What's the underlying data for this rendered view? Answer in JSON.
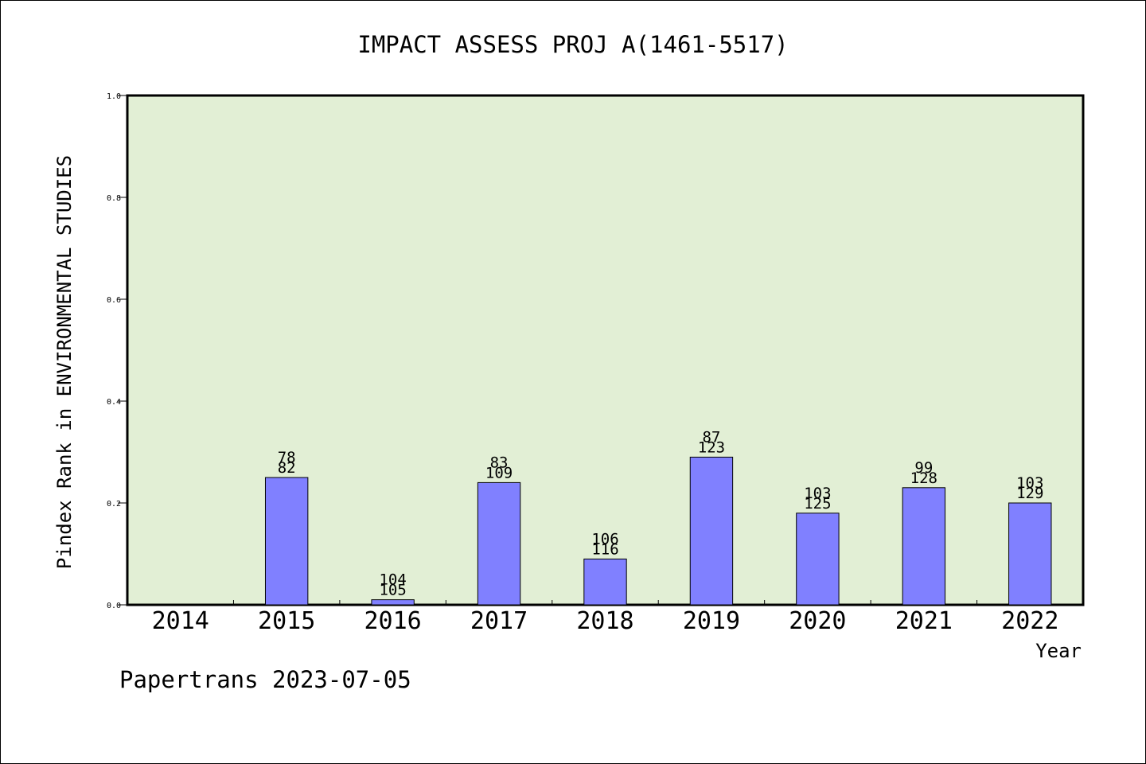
{
  "footer_text": "Papertrans 2023-07-05",
  "colors": {
    "plot_bg": "#e2efd5",
    "bar_fill": "#8080ff",
    "bar_stroke": "#000000"
  },
  "chart_data": {
    "type": "bar",
    "title": "IMPACT ASSESS PROJ A(1461-5517)",
    "xlabel": "Year",
    "ylabel": "Pindex Rank in ENVIRONMENTAL STUDIES",
    "ylim": [
      0,
      1.0
    ],
    "yticks": [
      "0.0",
      "0.2",
      "0.4",
      "0.6",
      "0.8",
      "1.0"
    ],
    "grid": false,
    "categories": [
      "2014",
      "2015",
      "2016",
      "2017",
      "2018",
      "2019",
      "2020",
      "2021",
      "2022"
    ],
    "values": [
      null,
      0.25,
      0.01,
      0.24,
      0.09,
      0.29,
      0.18,
      0.23,
      0.2
    ],
    "labels_top": [
      "",
      "78",
      "104",
      "83",
      "106",
      "87",
      "103",
      "99",
      "103"
    ],
    "labels_bottom": [
      "",
      "82",
      "105",
      "109",
      "116",
      "123",
      "125",
      "128",
      "129"
    ]
  }
}
